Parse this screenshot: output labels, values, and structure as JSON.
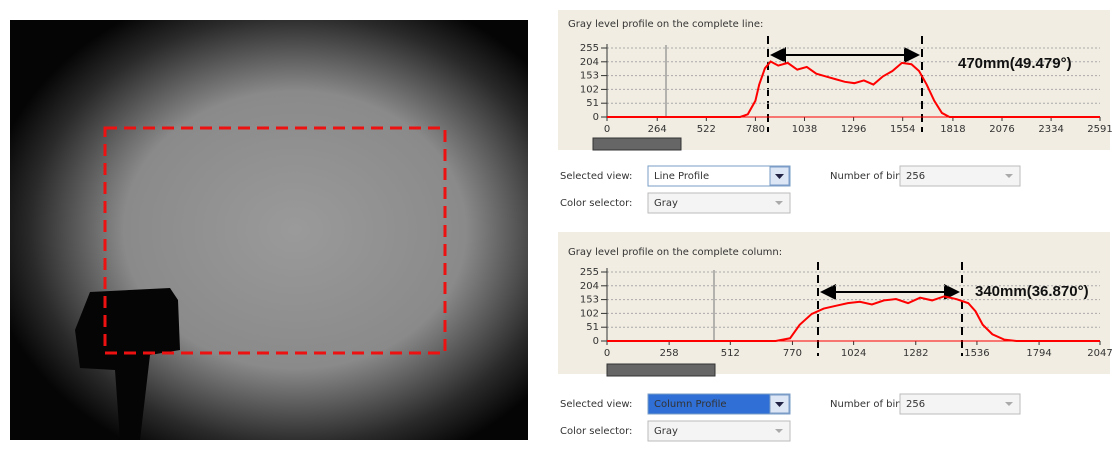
{
  "chart_data": [
    {
      "type": "line",
      "title": "Gray level profile on the complete line:",
      "annotation": "470mm(49.479°)",
      "x": [
        0,
        200,
        400,
        600,
        700,
        740,
        780,
        800,
        830,
        860,
        900,
        950,
        1000,
        1050,
        1100,
        1150,
        1200,
        1250,
        1300,
        1350,
        1400,
        1450,
        1500,
        1550,
        1600,
        1640,
        1680,
        1720,
        1760,
        1800,
        2000,
        2591
      ],
      "values": [
        0,
        0,
        0,
        0,
        0,
        10,
        60,
        120,
        180,
        205,
        190,
        200,
        175,
        185,
        160,
        150,
        140,
        130,
        125,
        135,
        120,
        150,
        170,
        200,
        195,
        170,
        120,
        60,
        15,
        0,
        0,
        0
      ],
      "color": "#ff0000",
      "xlim": [
        0,
        2591
      ],
      "ylim": [
        0,
        255
      ],
      "xticks": [
        0,
        264,
        522,
        780,
        1038,
        1296,
        1554,
        1818,
        2076,
        2334,
        2591
      ],
      "yticks": [
        0,
        51,
        102,
        153,
        204,
        255
      ],
      "grid": true
    },
    {
      "type": "line",
      "title": "Gray level profile on the complete column:",
      "annotation": "340mm(36.870°)",
      "x": [
        0,
        300,
        600,
        700,
        760,
        800,
        850,
        900,
        950,
        1000,
        1050,
        1100,
        1150,
        1200,
        1250,
        1300,
        1350,
        1400,
        1450,
        1500,
        1530,
        1560,
        1600,
        1650,
        1700,
        2047
      ],
      "values": [
        0,
        0,
        0,
        0,
        10,
        60,
        100,
        120,
        130,
        140,
        145,
        135,
        150,
        155,
        140,
        160,
        150,
        165,
        155,
        140,
        110,
        60,
        25,
        5,
        0,
        0
      ],
      "color": "#ff0000",
      "xlim": [
        0,
        2047
      ],
      "ylim": [
        0,
        255
      ],
      "xticks": [
        0,
        258,
        512,
        770,
        1024,
        1282,
        1536,
        1794,
        2047
      ],
      "yticks": [
        0,
        51,
        102,
        153,
        204,
        255
      ],
      "grid": true
    }
  ],
  "ui": {
    "panels": [
      {
        "view_label": "Selected view:",
        "view": "Line Profile",
        "bins_label": "Number of bins:",
        "bins": 256,
        "color_label": "Color selector:",
        "color": "Gray"
      },
      {
        "view_label": "Selected view:",
        "view": "Column Profile",
        "bins_label": "Number of bins:",
        "bins": 256,
        "color_label": "Color selector:",
        "color": "Gray"
      }
    ]
  }
}
